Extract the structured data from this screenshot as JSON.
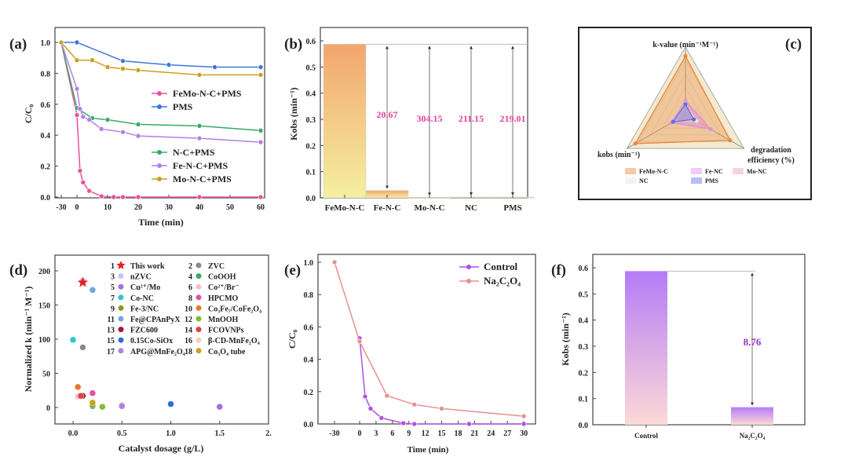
{
  "chart_data": [
    {
      "panel": "(a)",
      "type": "line",
      "xlabel": "Time (min)",
      "ylabel": "C/C₀",
      "xticks": [
        "-30",
        "0",
        "10",
        "20",
        "30",
        "40",
        "50",
        "60"
      ],
      "yticks": [
        "0.0",
        "0.2",
        "0.4",
        "0.6",
        "0.8",
        "1.0"
      ],
      "ylim": [
        0,
        1.1
      ],
      "xlim": [
        -30,
        62
      ],
      "series": [
        {
          "name": "FeMo-N-C+PMS",
          "color": "#e8529a",
          "x": [
            -30,
            0,
            1,
            2,
            4,
            8,
            12,
            15,
            20,
            40,
            60
          ],
          "y": [
            1.0,
            0.53,
            0.17,
            0.095,
            0.04,
            0.005,
            0,
            0,
            0,
            0,
            0
          ]
        },
        {
          "name": "PMS",
          "color": "#3a78d8",
          "x": [
            -30,
            0,
            15,
            30,
            45,
            60
          ],
          "y": [
            1.0,
            1.0,
            0.88,
            0.855,
            0.84,
            0.84
          ]
        },
        {
          "name": "N-C+PMS",
          "color": "#3aa86a",
          "x": [
            -30,
            0,
            5,
            10,
            20,
            40,
            60
          ],
          "y": [
            1.0,
            0.575,
            0.51,
            0.5,
            0.47,
            0.46,
            0.43
          ]
        },
        {
          "name": "Fe-N-C+PMS",
          "color": "#b57ee8",
          "x": [
            -30,
            0,
            1,
            2,
            4,
            8,
            15,
            20,
            40,
            60
          ],
          "y": [
            1.0,
            0.7,
            0.57,
            0.52,
            0.5,
            0.44,
            0.42,
            0.395,
            0.38,
            0.355
          ]
        },
        {
          "name": "Mo-N-C+PMS",
          "color": "#c9a020",
          "x": [
            -30,
            0,
            5,
            10,
            15,
            20,
            40,
            60
          ],
          "y": [
            1.0,
            0.885,
            0.885,
            0.84,
            0.83,
            0.82,
            0.79,
            0.79
          ]
        }
      ]
    },
    {
      "panel": "(b)",
      "type": "bar",
      "ylabel": "Kobs (min⁻¹)",
      "categories": [
        "FeMo-N-C",
        "Fe-N-C",
        "Mo-N-C",
        "NC",
        "PMS"
      ],
      "values": [
        0.587,
        0.028,
        0.002,
        0.003,
        0.003
      ],
      "ratio_labels": [
        "20.67",
        "304.15",
        "211.15",
        "219.01"
      ],
      "yticks": [
        "0.0",
        "0.1",
        "0.2",
        "0.3",
        "0.4",
        "0.5",
        "0.6"
      ],
      "ylim": [
        0,
        0.65
      ],
      "colors": {
        "bar_top": "#f3a56e",
        "bar_bottom": "#f4f0a0",
        "annotation": "#e0409a"
      }
    },
    {
      "panel": "(c)",
      "type": "radar",
      "axes": [
        "k-value (min⁻¹M⁻¹)",
        "kobs (min⁻¹)",
        "degradation",
        "efficiency (%)"
      ],
      "series": [
        {
          "name": "FeMo-N-C",
          "color": "#e8873a",
          "values": [
            0.91,
            0.9,
            0.8
          ]
        },
        {
          "name": "Fe-NC",
          "color": "#d98ee8",
          "values": [
            0.22,
            0.25,
            0.45
          ]
        },
        {
          "name": "Mo-NC",
          "color": "#f0a0b0",
          "values": [
            0.2,
            0.22,
            0.38
          ]
        },
        {
          "name": "NC",
          "color": "#f0e0e0",
          "values": [
            0.15,
            0.18,
            0.2
          ]
        },
        {
          "name": "PMS",
          "color": "#5a6ee8",
          "values": [
            0.16,
            0.22,
            0.15
          ]
        }
      ]
    },
    {
      "panel": "(d)",
      "type": "scatter",
      "xlabel": "Catalyst dosage (g/L)",
      "ylabel": "Normalized k (min⁻¹ M⁻¹)",
      "xticks": [
        "0.0",
        "0.5",
        "1.0",
        "1.5",
        "2."
      ],
      "yticks": [
        "0",
        "50",
        "100",
        "150",
        "200"
      ],
      "xlim": [
        -0.2,
        2.0
      ],
      "ylim": [
        -25,
        222
      ],
      "points": [
        {
          "id": "1",
          "name": "This work",
          "x": 0.1,
          "y": 183,
          "color": "#e82020",
          "marker": "star"
        },
        {
          "id": "2",
          "name": "ZVC",
          "x": 0.1,
          "y": 88,
          "color": "#8a8a8a"
        },
        {
          "id": "3",
          "name": "nZVC",
          "x": 0.1,
          "y": 186,
          "color": "#c8c4f0"
        },
        {
          "id": "4",
          "name": "CoOOH",
          "x": 0.2,
          "y": 2,
          "color": "#3aa86a"
        },
        {
          "id": "5",
          "name": "Cu²⁺/Mo",
          "x": 1.5,
          "y": 1,
          "color": "#a070e0"
        },
        {
          "id": "6",
          "name": "Co²⁺/Br⁻",
          "x": 0.05,
          "y": 16,
          "color": "#f4c0cc"
        },
        {
          "id": "7",
          "name": "Co-NC",
          "x": 0.0,
          "y": 99,
          "color": "#30c8c8"
        },
        {
          "id": "8",
          "name": "HPCMO",
          "x": 0.2,
          "y": 21,
          "color": "#e850a0"
        },
        {
          "id": "9",
          "name": "Fe-3/NC",
          "x": 0.2,
          "y": 4,
          "color": "#8a9a20"
        },
        {
          "id": "10",
          "name": "Co₃Fe₇/CoFe₂O₄",
          "x": 0.05,
          "y": 30,
          "color": "#e87830"
        },
        {
          "id": "11",
          "name": "Fe@CPAnPyX",
          "x": 0.2,
          "y": 172,
          "color": "#70a8e0"
        },
        {
          "id": "12",
          "name": "MnOOH",
          "x": 0.3,
          "y": 1,
          "color": "#7ac030"
        },
        {
          "id": "13",
          "name": "FZC600",
          "x": 0.1,
          "y": 17,
          "color": "#a01840"
        },
        {
          "id": "14",
          "name": "FCOVNPs",
          "x": 0.08,
          "y": 17,
          "color": "#e04040"
        },
        {
          "id": "15",
          "name": "0.15Co-SiOx",
          "x": 1.0,
          "y": 5,
          "color": "#2a70d8"
        },
        {
          "id": "16",
          "name": "β-CD-MnFe₂O₄",
          "x": 0.5,
          "y": 4,
          "color": "#f4d0b8"
        },
        {
          "id": "17",
          "name": "APG@MnFe₂O₄",
          "x": 0.5,
          "y": 2,
          "color": "#b080e0"
        },
        {
          "id": "18",
          "name": "Co₃O₄ tube",
          "x": 0.2,
          "y": 7,
          "color": "#c9a020"
        }
      ]
    },
    {
      "panel": "(e)",
      "type": "line",
      "xlabel": "Time (min)",
      "ylabel": "C/C₀",
      "xticks": [
        "-30",
        "0",
        "3",
        "6",
        "9",
        "12",
        "15",
        "18",
        "21",
        "24",
        "27",
        "30"
      ],
      "yticks": [
        "0.0",
        "0.2",
        "0.4",
        "0.6",
        "0.8",
        "1.0"
      ],
      "ylim": [
        0,
        1.05
      ],
      "series": [
        {
          "name": "Control",
          "color": "#b04fe8",
          "x": [
            0,
            1,
            2,
            4,
            8,
            10,
            20,
            30
          ],
          "y": [
            0.53,
            0.17,
            0.095,
            0.037,
            0.005,
            0,
            0,
            0
          ]
        },
        {
          "name": "Na₂C₂O₄",
          "color": "#e89090",
          "x": [
            -30,
            0,
            5,
            10,
            15,
            30
          ],
          "y": [
            1.0,
            0.51,
            0.175,
            0.12,
            0.095,
            0.048
          ]
        }
      ]
    },
    {
      "panel": "(f)",
      "type": "bar",
      "ylabel": "Kobs (min⁻¹)",
      "categories": [
        "Control",
        "Na₂C₂O₄"
      ],
      "values": [
        0.587,
        0.067
      ],
      "ratio_labels": [
        "8.76"
      ],
      "yticks": [
        "0.0",
        "0.1",
        "0.2",
        "0.3",
        "0.4",
        "0.5",
        "0.6"
      ],
      "ylim": [
        0,
        0.65
      ],
      "colors": {
        "bar_top": "#b57cf7",
        "bar_bottom": "#fcd9d6",
        "annotation": "#9b2fc8"
      }
    }
  ]
}
